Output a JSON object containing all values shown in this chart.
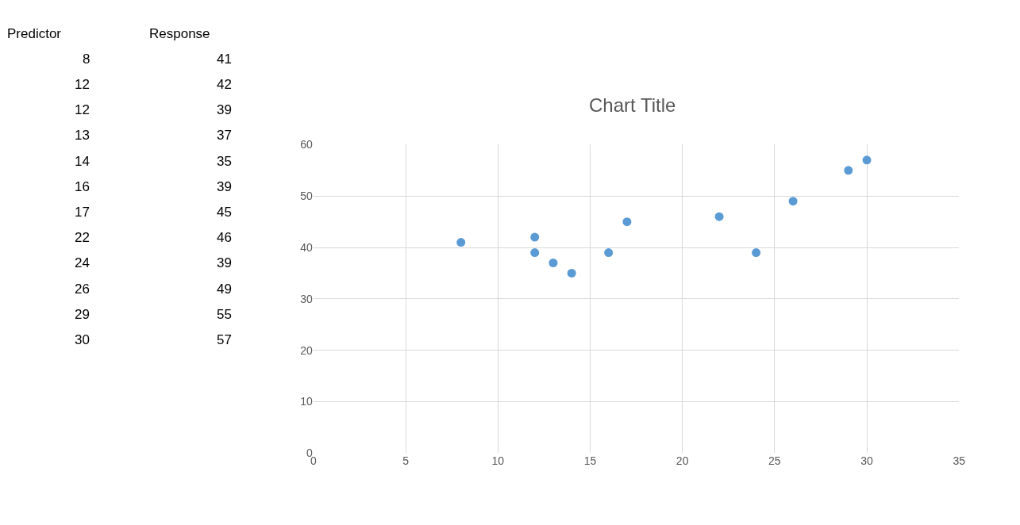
{
  "chart_data": [
    {
      "type": "other",
      "annotations": [
        "Predictor",
        "Response",
        "8",
        "41",
        "12",
        "42",
        "12",
        "39",
        "13",
        "37",
        "14",
        "35",
        "16",
        "39",
        "17",
        "45",
        "22",
        "46",
        "24",
        "39",
        "26",
        "49",
        "29",
        "55",
        "30",
        "57"
      ]
    },
    {
      "type": "scatter",
      "title": "Chart Title",
      "x": [
        8,
        12,
        12,
        13,
        14,
        16,
        17,
        22,
        24,
        26,
        29,
        30
      ],
      "values": [
        41,
        42,
        39,
        37,
        35,
        39,
        45,
        46,
        39,
        49,
        55,
        57
      ],
      "color": "#5b9bd5",
      "marker": "circle",
      "xlim": [
        0,
        35
      ],
      "xticks": [
        0,
        5,
        10,
        15,
        20,
        25,
        30,
        35
      ],
      "ylim": [
        0,
        60
      ],
      "yticks": [
        0,
        10,
        20,
        30,
        40,
        50,
        60
      ],
      "grid": true,
      "legend": false
    }
  ]
}
